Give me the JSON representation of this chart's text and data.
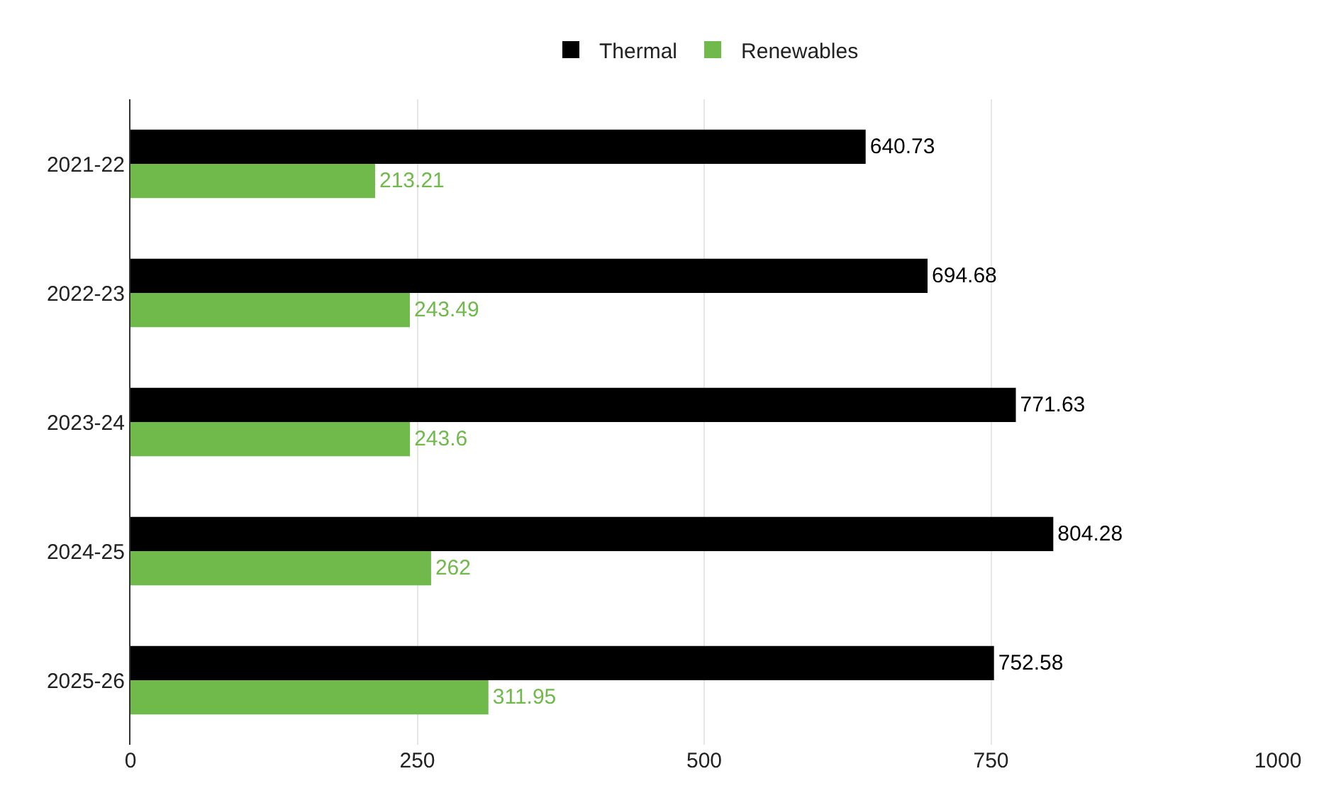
{
  "chart_data": {
    "type": "bar",
    "orientation": "horizontal",
    "categories": [
      "2021-22",
      "2022-23",
      "2023-24",
      "2024-25",
      "2025-26"
    ],
    "series": [
      {
        "name": "Thermal",
        "color": "#000000",
        "values": [
          640.73,
          694.68,
          771.63,
          804.28,
          752.58
        ]
      },
      {
        "name": "Renewables",
        "color": "#70b94b",
        "values": [
          213.21,
          243.49,
          243.6,
          262,
          311.95
        ]
      }
    ],
    "xlim": [
      0,
      1000
    ],
    "xticks": [
      0,
      250,
      500,
      750,
      1000
    ],
    "grid": "x",
    "legend": "top",
    "data_labels": true
  }
}
